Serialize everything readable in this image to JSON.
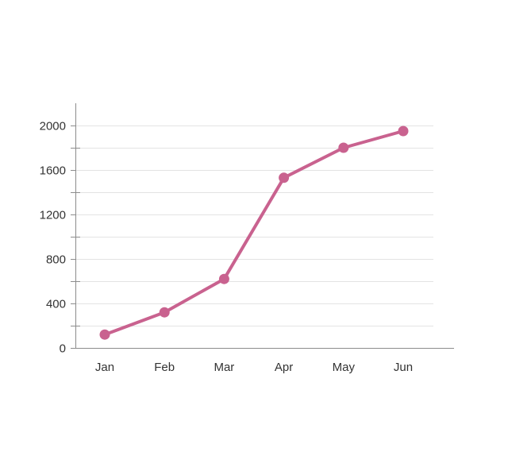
{
  "chart_data": {
    "type": "line",
    "title": "",
    "xlabel": "",
    "ylabel": "",
    "categories": [
      "Jan",
      "Feb",
      "Mar",
      "Apr",
      "May",
      "Jun"
    ],
    "series": [
      {
        "values": [
          120,
          320,
          620,
          1530,
          1800,
          1950
        ],
        "color": "#c9628f"
      }
    ],
    "ylim": [
      0,
      2200
    ],
    "yticks": [
      0,
      400,
      800,
      1200,
      1600,
      2000
    ],
    "minor_yticks": [
      200,
      600,
      1000,
      1400,
      1800
    ],
    "grid": true,
    "legend": "none",
    "colors": {
      "line": "#c9628f",
      "grid": "#e3e3e3",
      "axis": "#8c8c8c",
      "label": "#333333"
    }
  }
}
